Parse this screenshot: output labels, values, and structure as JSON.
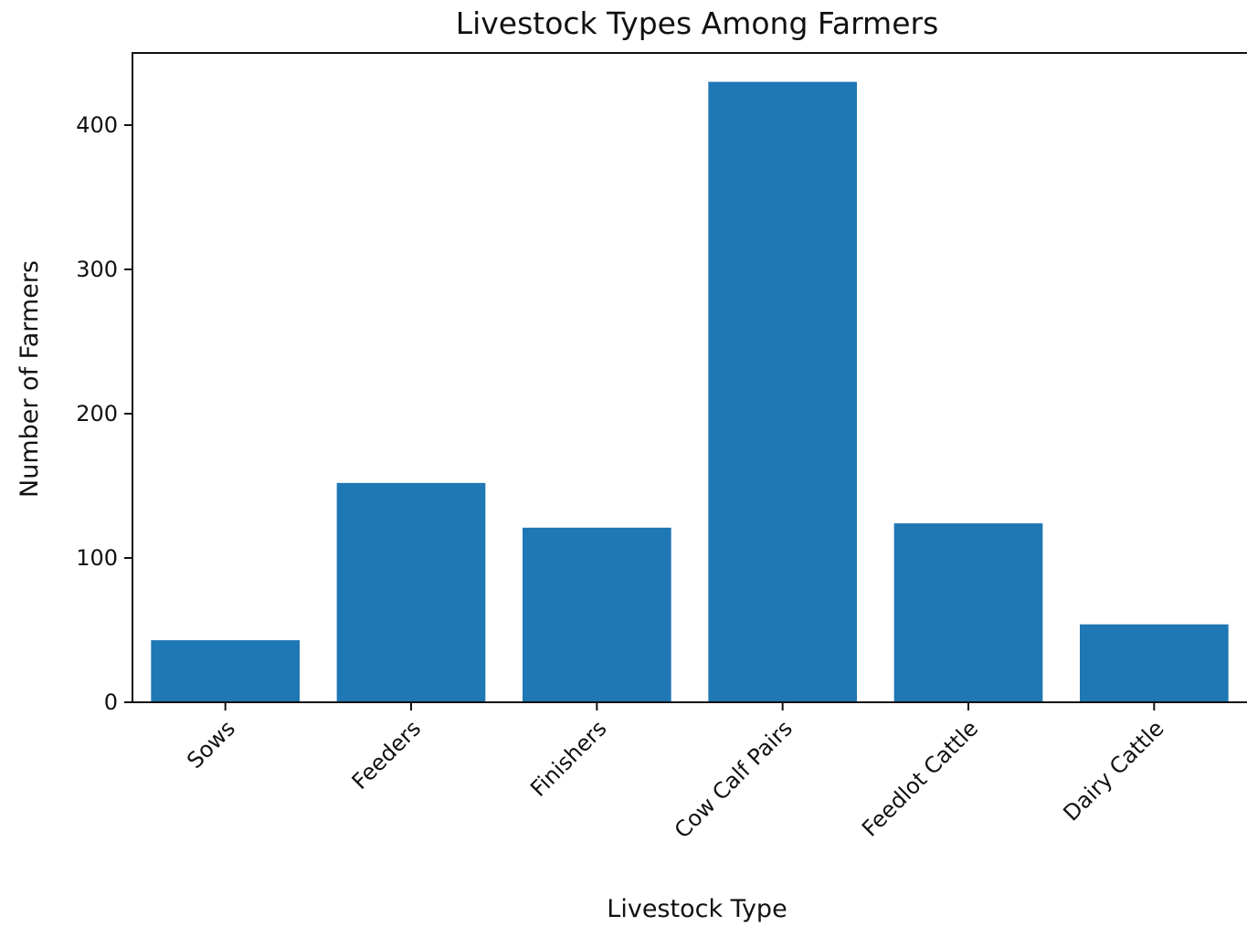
{
  "chart_data": {
    "type": "bar",
    "title": "Livestock Types Among Farmers",
    "xlabel": "Livestock Type",
    "ylabel": "Number of Farmers",
    "categories": [
      "Sows",
      "Feeders",
      "Finishers",
      "Cow Calf Pairs",
      "Feedlot Cattle",
      "Dairy Cattle"
    ],
    "values": [
      43,
      152,
      121,
      430,
      124,
      54
    ],
    "ylim": [
      0,
      450
    ],
    "yticks": [
      0,
      100,
      200,
      300,
      400
    ],
    "bar_color": "#1f77b4",
    "grid": false,
    "x_tick_rotation": -45
  }
}
